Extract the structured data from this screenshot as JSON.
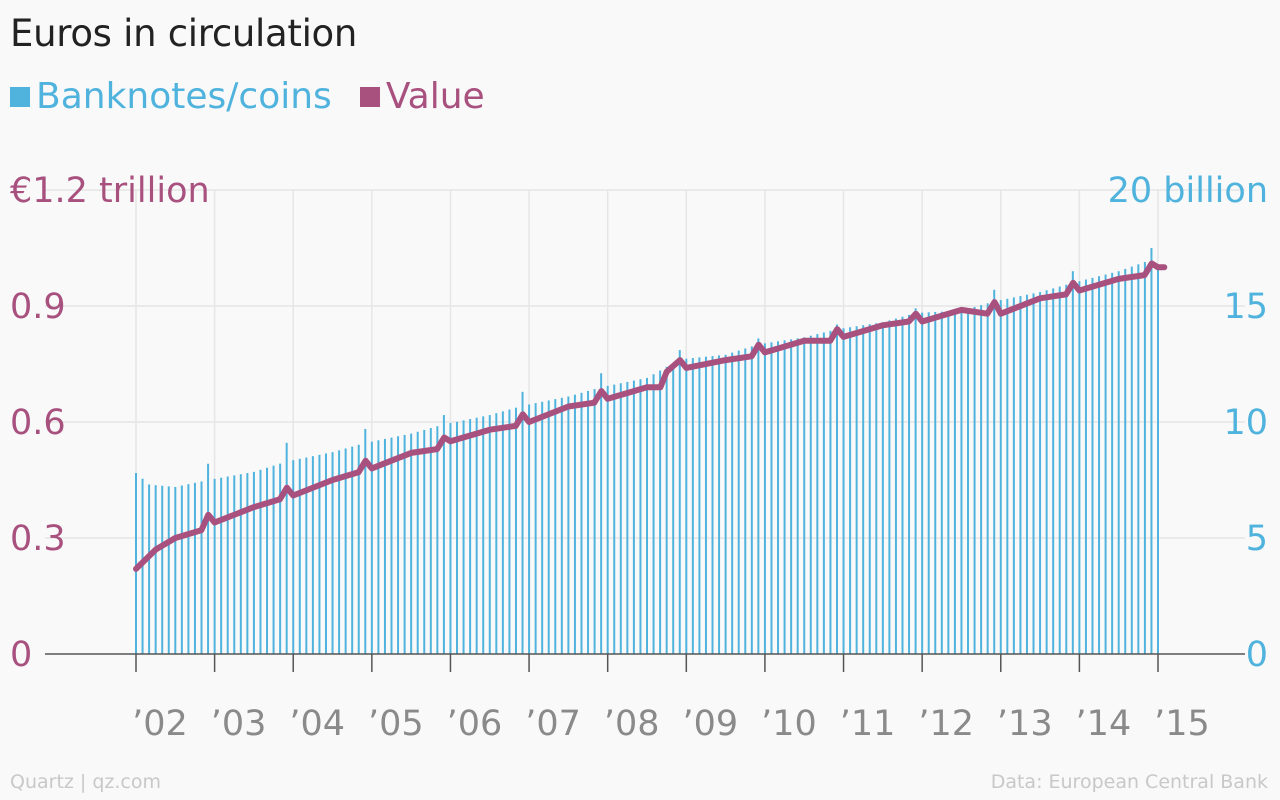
{
  "header": {
    "title": "Euros in circulation"
  },
  "legend": [
    {
      "label": "Banknotes/coins",
      "color": "#4fb3de"
    },
    {
      "label": "Value",
      "color": "#a8517f"
    }
  ],
  "footer": {
    "left": "Quartz | qz.com",
    "right": "Data: European Central Bank"
  },
  "chart_data": {
    "type": "bar",
    "title": "Euros in circulation",
    "grid": true,
    "legend_position": "top-left",
    "x_axis": {
      "tick_labels": [
        "’02",
        "’03",
        "’04",
        "’05",
        "’06",
        "’07",
        "’08",
        "’09",
        "’10",
        "’11",
        "’12",
        "’13",
        "’14",
        "’15"
      ]
    },
    "y_left": {
      "series": "Value",
      "range": [
        0,
        1.2
      ],
      "ticks": [
        0,
        0.3,
        0.6,
        0.9
      ],
      "tick_labels": [
        "0",
        "0.3",
        "0.6",
        "0.9"
      ],
      "top_label": "€1.2 trillion",
      "color": "#a8517f"
    },
    "y_right": {
      "series": "Banknotes/coins",
      "unit": "billion",
      "range": [
        0,
        20
      ],
      "ticks": [
        0,
        5,
        10,
        15
      ],
      "tick_labels": [
        "0",
        "5",
        "10",
        "15"
      ],
      "top_label": "20 billion",
      "color": "#4fb3de"
    },
    "x_start": "2002-01",
    "x_end": "2015-01",
    "banknotes_anchors": [
      [
        2002.0,
        7.8
      ],
      [
        2002.17,
        7.3
      ],
      [
        2002.5,
        7.2
      ],
      [
        2002.92,
        7.5
      ],
      [
        2003.5,
        7.85
      ],
      [
        2003.92,
        8.3
      ],
      [
        2004.5,
        8.7
      ],
      [
        2004.92,
        9.1
      ],
      [
        2005.5,
        9.5
      ],
      [
        2005.92,
        9.9
      ],
      [
        2006.5,
        10.3
      ],
      [
        2006.92,
        10.7
      ],
      [
        2007.5,
        11.1
      ],
      [
        2007.92,
        11.5
      ],
      [
        2008.5,
        11.9
      ],
      [
        2008.92,
        12.7
      ],
      [
        2009.5,
        12.9
      ],
      [
        2009.92,
        13.35
      ],
      [
        2010.5,
        13.65
      ],
      [
        2010.92,
        14.0
      ],
      [
        2011.5,
        14.3
      ],
      [
        2011.92,
        14.7
      ],
      [
        2012.5,
        14.8
      ],
      [
        2012.92,
        15.2
      ],
      [
        2013.5,
        15.6
      ],
      [
        2013.92,
        16.0
      ],
      [
        2014.5,
        16.5
      ],
      [
        2014.92,
        17.0
      ],
      [
        2015.0,
        16.8
      ]
    ],
    "banknotes_spikes": [
      [
        2002.92,
        8.2
      ],
      [
        2003.92,
        9.1
      ],
      [
        2004.92,
        9.7
      ],
      [
        2005.92,
        10.3
      ],
      [
        2006.92,
        11.3
      ],
      [
        2007.92,
        12.1
      ],
      [
        2008.92,
        13.1
      ],
      [
        2009.92,
        13.6
      ],
      [
        2010.92,
        14.2
      ],
      [
        2011.92,
        14.9
      ],
      [
        2012.92,
        15.7
      ],
      [
        2013.92,
        16.5
      ],
      [
        2014.92,
        17.5
      ]
    ],
    "value_anchors": [
      [
        2002.0,
        0.22
      ],
      [
        2002.25,
        0.27
      ],
      [
        2002.5,
        0.3
      ],
      [
        2002.83,
        0.32
      ],
      [
        2002.92,
        0.36
      ],
      [
        2003.0,
        0.34
      ],
      [
        2003.5,
        0.38
      ],
      [
        2003.83,
        0.4
      ],
      [
        2003.92,
        0.43
      ],
      [
        2004.0,
        0.41
      ],
      [
        2004.5,
        0.45
      ],
      [
        2004.83,
        0.47
      ],
      [
        2004.92,
        0.5
      ],
      [
        2005.0,
        0.48
      ],
      [
        2005.5,
        0.52
      ],
      [
        2005.83,
        0.53
      ],
      [
        2005.92,
        0.56
      ],
      [
        2006.0,
        0.55
      ],
      [
        2006.5,
        0.58
      ],
      [
        2006.83,
        0.59
      ],
      [
        2006.92,
        0.62
      ],
      [
        2007.0,
        0.6
      ],
      [
        2007.5,
        0.64
      ],
      [
        2007.83,
        0.65
      ],
      [
        2007.92,
        0.68
      ],
      [
        2008.0,
        0.66
      ],
      [
        2008.5,
        0.69
      ],
      [
        2008.67,
        0.69
      ],
      [
        2008.75,
        0.73
      ],
      [
        2008.92,
        0.76
      ],
      [
        2009.0,
        0.74
      ],
      [
        2009.5,
        0.76
      ],
      [
        2009.83,
        0.77
      ],
      [
        2009.92,
        0.8
      ],
      [
        2010.0,
        0.78
      ],
      [
        2010.5,
        0.81
      ],
      [
        2010.83,
        0.81
      ],
      [
        2010.92,
        0.84
      ],
      [
        2011.0,
        0.82
      ],
      [
        2011.5,
        0.85
      ],
      [
        2011.83,
        0.86
      ],
      [
        2011.92,
        0.88
      ],
      [
        2012.0,
        0.86
      ],
      [
        2012.5,
        0.89
      ],
      [
        2012.83,
        0.88
      ],
      [
        2012.92,
        0.91
      ],
      [
        2013.0,
        0.88
      ],
      [
        2013.5,
        0.92
      ],
      [
        2013.83,
        0.93
      ],
      [
        2013.92,
        0.96
      ],
      [
        2014.0,
        0.94
      ],
      [
        2014.5,
        0.97
      ],
      [
        2014.83,
        0.98
      ],
      [
        2014.92,
        1.01
      ],
      [
        2015.0,
        1.0
      ],
      [
        2015.08,
        1.0
      ]
    ]
  }
}
